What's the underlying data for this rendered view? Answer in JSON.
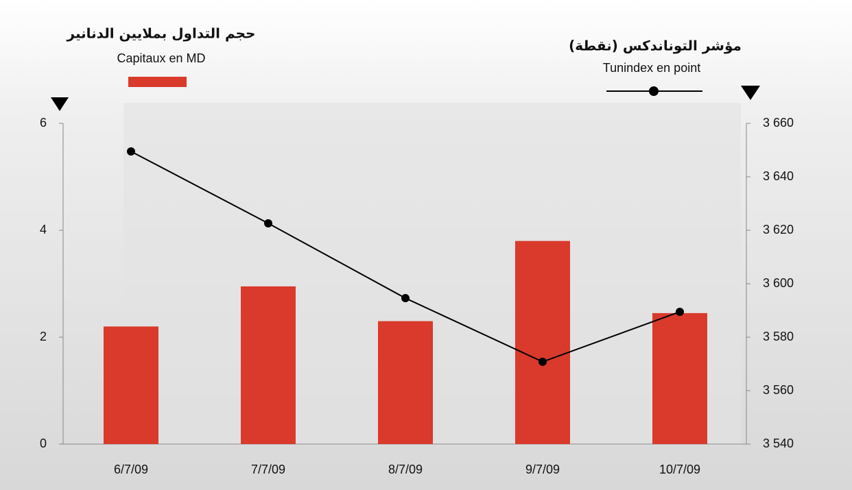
{
  "chart_data": {
    "type": "combo",
    "categories": [
      "6/7/09",
      "7/7/09",
      "8/7/09",
      "9/7/09",
      "10/7/09"
    ],
    "series": [
      {
        "type": "bar",
        "name_ar": "حجم التداول بملايين الدنانير",
        "name": "Capitaux en MD",
        "color": "#d93a2b",
        "axis": "y",
        "values": [
          2.2,
          2.95,
          2.3,
          3.8,
          2.45
        ]
      },
      {
        "type": "line",
        "name_ar": "مؤشر التوناندكس (نقطة)",
        "name": "Tunindex en point",
        "color": "#000000",
        "axis": "y2",
        "values": [
          3649.5,
          3622.6,
          3594.6,
          3570.8,
          3589.5
        ]
      }
    ],
    "ylim": [
      0,
      6
    ],
    "yticks": [
      0,
      2,
      4,
      6
    ],
    "y2lim": [
      3540,
      3660
    ],
    "y2ticks": [
      {
        "value": 3540,
        "label": "3 540"
      },
      {
        "value": 3560,
        "label": "3 560"
      },
      {
        "value": 3580,
        "label": "3 580"
      },
      {
        "value": 3600,
        "label": "3 600"
      },
      {
        "value": 3620,
        "label": "3 620"
      },
      {
        "value": 3640,
        "label": "3 640"
      },
      {
        "value": 3660,
        "label": "3 660"
      }
    ]
  }
}
